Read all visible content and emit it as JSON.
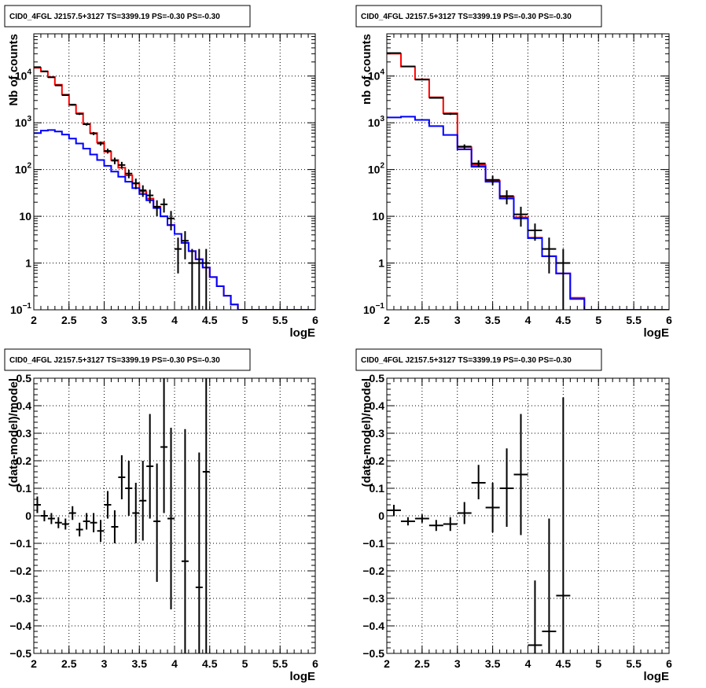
{
  "chart_data": [
    {
      "type": "histogram",
      "title": "CID0_4FGL J2157.5+3127 TS=3399.19 PS=-0.30 PS=-0.30",
      "xlabel": "logE",
      "ylabel": "Nb of counts",
      "log_y": true,
      "xlim": [
        2,
        6
      ],
      "ylim": [
        0.1,
        80000
      ],
      "x_ticks": [
        "2",
        "2.5",
        "3",
        "3.5",
        "4",
        "4.5",
        "5",
        "5.5",
        "6"
      ],
      "y_ticks": [
        {
          "value": 0.1,
          "label": "10",
          "exp": "−1"
        },
        {
          "value": 1,
          "label": "1",
          "exp": ""
        },
        {
          "value": 10,
          "label": "10",
          "exp": ""
        },
        {
          "value": 100,
          "label": "10",
          "exp": "2"
        },
        {
          "value": 1000,
          "label": "10",
          "exp": "3"
        },
        {
          "value": 10000,
          "label": "10",
          "exp": "4"
        }
      ],
      "grid": true,
      "bin_edges": [
        2.0,
        2.1,
        2.2,
        2.3,
        2.4,
        2.5,
        2.6,
        2.7,
        2.8,
        2.9,
        3.0,
        3.1,
        3.2,
        3.3,
        3.4,
        3.5,
        3.6,
        3.7,
        3.8,
        3.9,
        4.0,
        4.1,
        4.2,
        4.3,
        4.4,
        4.5,
        4.6,
        4.7,
        4.8,
        4.9,
        5.0,
        5.1,
        5.2,
        5.3,
        5.4,
        5.5,
        5.6,
        5.7,
        5.8,
        5.9,
        6.0
      ],
      "series": [
        {
          "color": "#ff0000",
          "style": "step",
          "values": [
            15000,
            12500,
            9500,
            6500,
            4000,
            2400,
            1600,
            950,
            600,
            380,
            240,
            160,
            110,
            75,
            50,
            34,
            24,
            16,
            10,
            6.5,
            4.2,
            2.7,
            1.8,
            1.2,
            0.8,
            0.5,
            0.32,
            0.2,
            0.13,
            0.1,
            0.1,
            0.1,
            0.1,
            0.1,
            0.1,
            0.1,
            0.1,
            0.1,
            0.1,
            0.1
          ]
        },
        {
          "color": "#0000ff",
          "style": "step",
          "values": [
            600,
            680,
            700,
            650,
            560,
            460,
            360,
            280,
            210,
            160,
            120,
            90,
            70,
            55,
            40,
            30,
            22,
            15,
            10,
            6.5,
            4.2,
            2.7,
            1.8,
            1.2,
            0.8,
            0.5,
            0.32,
            0.2,
            0.13,
            0.1,
            0.1,
            0.1,
            0.1,
            0.1,
            0.1,
            0.1,
            0.1,
            0.1,
            0.1,
            0.1
          ]
        },
        {
          "color": "#000000",
          "style": "points",
          "points": [
            {
              "x": 2.05,
              "y": 15500,
              "lo": 15260,
              "hi": 15740
            },
            {
              "x": 2.15,
              "y": 12600,
              "lo": 12380,
              "hi": 12820
            },
            {
              "x": 2.25,
              "y": 9400,
              "lo": 9200,
              "hi": 9600
            },
            {
              "x": 2.35,
              "y": 6300,
              "lo": 6140,
              "hi": 6460
            },
            {
              "x": 2.45,
              "y": 3900,
              "lo": 3780,
              "hi": 4020
            },
            {
              "x": 2.55,
              "y": 2450,
              "lo": 2350,
              "hi": 2550
            },
            {
              "x": 2.65,
              "y": 1550,
              "lo": 1470,
              "hi": 1630
            },
            {
              "x": 2.75,
              "y": 930,
              "lo": 870,
              "hi": 990
            },
            {
              "x": 2.85,
              "y": 590,
              "lo": 545,
              "hi": 635
            },
            {
              "x": 2.95,
              "y": 360,
              "lo": 325,
              "hi": 395
            },
            {
              "x": 3.05,
              "y": 250,
              "lo": 220,
              "hi": 280
            },
            {
              "x": 3.15,
              "y": 155,
              "lo": 130,
              "hi": 180
            },
            {
              "x": 3.25,
              "y": 125,
              "lo": 104,
              "hi": 146
            },
            {
              "x": 3.35,
              "y": 82,
              "lo": 65,
              "hi": 99
            },
            {
              "x": 3.45,
              "y": 51,
              "lo": 38,
              "hi": 64
            },
            {
              "x": 3.55,
              "y": 36,
              "lo": 26,
              "hi": 46
            },
            {
              "x": 3.65,
              "y": 28,
              "lo": 19,
              "hi": 37
            },
            {
              "x": 3.75,
              "y": 16,
              "lo": 10,
              "hi": 22
            },
            {
              "x": 3.85,
              "y": 18,
              "lo": 12,
              "hi": 24
            },
            {
              "x": 3.95,
              "y": 9,
              "lo": 5,
              "hi": 13
            },
            {
              "x": 4.05,
              "y": 2,
              "lo": 0.6,
              "hi": 3.5
            },
            {
              "x": 4.15,
              "y": 3,
              "lo": 1.2,
              "hi": 4.8
            },
            {
              "x": 4.25,
              "y": 1,
              "lo": 0.1,
              "hi": 2.0
            },
            {
              "x": 4.35,
              "y": 1,
              "lo": 0.1,
              "hi": 2.0
            },
            {
              "x": 4.45,
              "y": 1,
              "lo": 0.1,
              "hi": 2.0
            }
          ]
        }
      ]
    },
    {
      "type": "histogram",
      "title": "CID0_4FGL J2157.5+3127 TS=3399.19 PS=-0.30 PS=-0.30",
      "xlabel": "logE",
      "ylabel": "nb of counts",
      "log_y": true,
      "xlim": [
        2,
        6
      ],
      "ylim": [
        0.1,
        80000
      ],
      "x_ticks": [
        "2",
        "2.5",
        "3",
        "3.5",
        "4",
        "4.5",
        "5",
        "5.5",
        "6"
      ],
      "y_ticks": [
        {
          "value": 0.1,
          "label": "10",
          "exp": "−1"
        },
        {
          "value": 1,
          "label": "1",
          "exp": ""
        },
        {
          "value": 10,
          "label": "10",
          "exp": ""
        },
        {
          "value": 100,
          "label": "10",
          "exp": "2"
        },
        {
          "value": 1000,
          "label": "10",
          "exp": "3"
        },
        {
          "value": 10000,
          "label": "10",
          "exp": "4"
        }
      ],
      "grid": true,
      "bin_edges": [
        2.0,
        2.2,
        2.4,
        2.6,
        2.8,
        3.0,
        3.2,
        3.4,
        3.6,
        3.8,
        4.0,
        4.2,
        4.4,
        4.6,
        4.8,
        5.0,
        5.2,
        5.4,
        5.6,
        5.8,
        6.0
      ],
      "series": [
        {
          "color": "#ff0000",
          "style": "step",
          "values": [
            30000,
            16000,
            8500,
            3500,
            1600,
            300,
            125,
            58,
            26,
            9.5,
            3.5,
            1.4,
            0.6,
            0.18,
            0.1,
            0.1,
            0.1,
            0.1,
            0.1,
            0.1
          ]
        },
        {
          "color": "#0000ff",
          "style": "step",
          "values": [
            1300,
            1350,
            1150,
            850,
            550,
            270,
            115,
            55,
            24,
            9,
            3.4,
            1.4,
            0.6,
            0.17,
            0.1,
            0.1,
            0.1,
            0.1,
            0.1,
            0.1
          ]
        },
        {
          "color": "#000000",
          "style": "points",
          "points": [
            {
              "x": 2.1,
              "y": 31000,
              "lo": 30650,
              "hi": 31350
            },
            {
              "x": 2.3,
              "y": 16000,
              "lo": 15750,
              "hi": 16250
            },
            {
              "x": 2.5,
              "y": 8400,
              "lo": 8220,
              "hi": 8580
            },
            {
              "x": 2.7,
              "y": 3400,
              "lo": 3280,
              "hi": 3520
            },
            {
              "x": 2.9,
              "y": 1550,
              "lo": 1470,
              "hi": 1630
            },
            {
              "x": 3.1,
              "y": 310,
              "lo": 275,
              "hi": 345
            },
            {
              "x": 3.3,
              "y": 135,
              "lo": 112,
              "hi": 158
            },
            {
              "x": 3.5,
              "y": 60,
              "lo": 46,
              "hi": 74
            },
            {
              "x": 3.7,
              "y": 27,
              "lo": 18,
              "hi": 36
            },
            {
              "x": 3.9,
              "y": 11,
              "lo": 6,
              "hi": 16
            },
            {
              "x": 4.1,
              "y": 5,
              "lo": 3,
              "hi": 7
            },
            {
              "x": 4.3,
              "y": 2,
              "lo": 0.6,
              "hi": 3.5
            },
            {
              "x": 4.5,
              "y": 1,
              "lo": 0.1,
              "hi": 2.0
            }
          ]
        }
      ]
    },
    {
      "type": "scatter",
      "title": "CID0_4FGL J2157.5+3127 TS=3399.19 PS=-0.30 PS=-0.30",
      "xlabel": "logE",
      "ylabel": "(data-model)/model",
      "log_y": false,
      "xlim": [
        2,
        6
      ],
      "ylim": [
        -0.5,
        0.5
      ],
      "x_ticks": [
        "2",
        "2.5",
        "3",
        "3.5",
        "4",
        "4.5",
        "5",
        "5.5",
        "6"
      ],
      "y_ticks": [
        {
          "value": -0.5,
          "label": "−0.5"
        },
        {
          "value": -0.4,
          "label": "−0.4"
        },
        {
          "value": -0.3,
          "label": "−0.3"
        },
        {
          "value": -0.2,
          "label": "−0.2"
        },
        {
          "value": -0.1,
          "label": "−0.1"
        },
        {
          "value": 0,
          "label": "0"
        },
        {
          "value": 0.1,
          "label": "0.1"
        },
        {
          "value": 0.2,
          "label": "0.2"
        },
        {
          "value": 0.3,
          "label": "0.3"
        },
        {
          "value": 0.4,
          "label": "0.4"
        },
        {
          "value": 0.5,
          "label": "0.5"
        }
      ],
      "grid": true,
      "half_width": 0.05,
      "series": [
        {
          "color": "#000000",
          "style": "points",
          "points": [
            {
              "x": 2.05,
              "y": 0.04,
              "lo": 0.01,
              "hi": 0.07
            },
            {
              "x": 2.15,
              "y": 0.0,
              "lo": -0.02,
              "hi": 0.02
            },
            {
              "x": 2.25,
              "y": -0.01,
              "lo": -0.03,
              "hi": 0.01
            },
            {
              "x": 2.35,
              "y": -0.025,
              "lo": -0.045,
              "hi": -0.005
            },
            {
              "x": 2.45,
              "y": -0.03,
              "lo": -0.05,
              "hi": -0.01
            },
            {
              "x": 2.55,
              "y": 0.01,
              "lo": -0.015,
              "hi": 0.035
            },
            {
              "x": 2.65,
              "y": -0.05,
              "lo": -0.075,
              "hi": -0.025
            },
            {
              "x": 2.75,
              "y": -0.02,
              "lo": -0.05,
              "hi": 0.01
            },
            {
              "x": 2.85,
              "y": -0.025,
              "lo": -0.06,
              "hi": 0.01
            },
            {
              "x": 2.95,
              "y": -0.055,
              "lo": -0.095,
              "hi": -0.015
            },
            {
              "x": 3.05,
              "y": 0.04,
              "lo": -0.01,
              "hi": 0.09
            },
            {
              "x": 3.15,
              "y": -0.04,
              "lo": -0.1,
              "hi": 0.02
            },
            {
              "x": 3.25,
              "y": 0.14,
              "lo": 0.06,
              "hi": 0.22
            },
            {
              "x": 3.35,
              "y": 0.1,
              "lo": 0.0,
              "hi": 0.2
            },
            {
              "x": 3.45,
              "y": 0.01,
              "lo": -0.1,
              "hi": 0.12
            },
            {
              "x": 3.55,
              "y": 0.055,
              "lo": -0.09,
              "hi": 0.2
            },
            {
              "x": 3.65,
              "y": 0.18,
              "lo": -0.01,
              "hi": 0.37
            },
            {
              "x": 3.75,
              "y": -0.02,
              "lo": -0.24,
              "hi": 0.19
            },
            {
              "x": 3.85,
              "y": 0.25,
              "lo": 0.01,
              "hi": 0.5
            },
            {
              "x": 3.95,
              "y": -0.01,
              "lo": -0.34,
              "hi": 0.32
            },
            {
              "x": 4.15,
              "y": -0.165,
              "lo": -0.5,
              "hi": 0.315
            },
            {
              "x": 4.35,
              "y": -0.26,
              "lo": -0.5,
              "hi": 0.23
            },
            {
              "x": 4.45,
              "y": 0.16,
              "lo": -0.5,
              "hi": 0.5
            }
          ]
        }
      ]
    },
    {
      "type": "scatter",
      "title": "CID0_4FGL J2157.5+3127 TS=3399.19 PS=-0.30 PS=-0.30",
      "xlabel": "logE",
      "ylabel": "(data-model)/model",
      "log_y": false,
      "xlim": [
        2,
        6
      ],
      "ylim": [
        -0.5,
        0.5
      ],
      "x_ticks": [
        "2",
        "2.5",
        "3",
        "3.5",
        "4",
        "4.5",
        "5",
        "5.5",
        "6"
      ],
      "y_ticks": [
        {
          "value": -0.5,
          "label": "−0.5"
        },
        {
          "value": -0.4,
          "label": "−0.4"
        },
        {
          "value": -0.3,
          "label": "−0.3"
        },
        {
          "value": -0.2,
          "label": "−0.2"
        },
        {
          "value": -0.1,
          "label": "−0.1"
        },
        {
          "value": 0,
          "label": "0"
        },
        {
          "value": 0.1,
          "label": "0.1"
        },
        {
          "value": 0.2,
          "label": "0.2"
        },
        {
          "value": 0.3,
          "label": "0.3"
        },
        {
          "value": 0.4,
          "label": "0.4"
        },
        {
          "value": 0.5,
          "label": "0.5"
        }
      ],
      "grid": true,
      "half_width": 0.1,
      "series": [
        {
          "color": "#000000",
          "style": "points",
          "points": [
            {
              "x": 2.1,
              "y": 0.02,
              "lo": 0.0,
              "hi": 0.04
            },
            {
              "x": 2.3,
              "y": -0.02,
              "lo": -0.035,
              "hi": -0.005
            },
            {
              "x": 2.5,
              "y": -0.01,
              "lo": -0.025,
              "hi": 0.005
            },
            {
              "x": 2.7,
              "y": -0.035,
              "lo": -0.055,
              "hi": -0.015
            },
            {
              "x": 2.9,
              "y": -0.03,
              "lo": -0.055,
              "hi": -0.005
            },
            {
              "x": 3.1,
              "y": 0.01,
              "lo": -0.03,
              "hi": 0.05
            },
            {
              "x": 3.3,
              "y": 0.12,
              "lo": 0.06,
              "hi": 0.185
            },
            {
              "x": 3.5,
              "y": 0.03,
              "lo": -0.06,
              "hi": 0.12
            },
            {
              "x": 3.7,
              "y": 0.1,
              "lo": -0.04,
              "hi": 0.245
            },
            {
              "x": 3.9,
              "y": 0.15,
              "lo": -0.07,
              "hi": 0.37
            },
            {
              "x": 4.1,
              "y": -0.47,
              "lo": -0.5,
              "hi": -0.235
            },
            {
              "x": 4.3,
              "y": -0.42,
              "lo": -0.5,
              "hi": -0.01
            },
            {
              "x": 4.5,
              "y": -0.29,
              "lo": -0.5,
              "hi": 0.43
            }
          ]
        }
      ]
    }
  ]
}
